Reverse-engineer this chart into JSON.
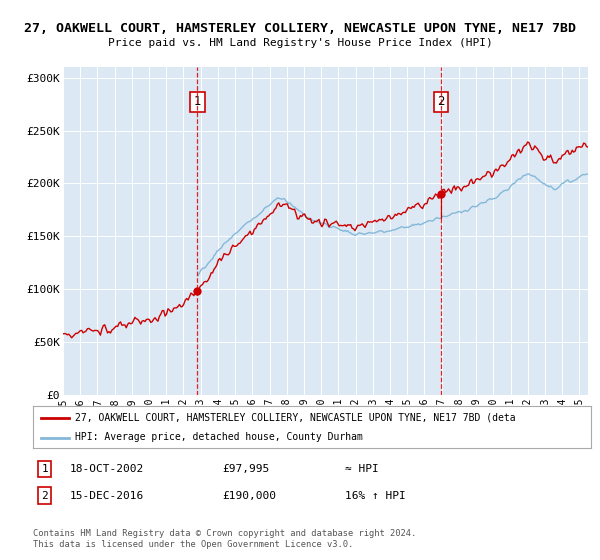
{
  "title": "27, OAKWELL COURT, HAMSTERLEY COLLIERY, NEWCASTLE UPON TYNE, NE17 7BD",
  "subtitle": "Price paid vs. HM Land Registry's House Price Index (HPI)",
  "background_color": "#dce9f5",
  "plot_bg_color": "#dce9f5",
  "hpi_color": "#85b8d8",
  "price_color": "#cc0000",
  "sale1_date": 2002.8,
  "sale1_price": 97995,
  "sale2_date": 2016.96,
  "sale2_price": 190000,
  "xmin": 1995,
  "xmax": 2025.5,
  "ymin": 0,
  "ymax": 310000,
  "yticks": [
    0,
    50000,
    100000,
    150000,
    200000,
    250000,
    300000
  ],
  "ytick_labels": [
    "£0",
    "£50K",
    "£100K",
    "£150K",
    "£200K",
    "£250K",
    "£300K"
  ],
  "xtick_years": [
    1995,
    1996,
    1997,
    1998,
    1999,
    2000,
    2001,
    2002,
    2003,
    2004,
    2005,
    2006,
    2007,
    2008,
    2009,
    2010,
    2011,
    2012,
    2013,
    2014,
    2015,
    2016,
    2017,
    2018,
    2019,
    2020,
    2021,
    2022,
    2023,
    2024,
    2025
  ],
  "legend_label_price": "27, OAKWELL COURT, HAMSTERLEY COLLIERY, NEWCASTLE UPON TYNE, NE17 7BD (deta",
  "legend_label_hpi": "HPI: Average price, detached house, County Durham",
  "sale1_label": "1",
  "sale2_label": "2",
  "table_row1": [
    "1",
    "18-OCT-2002",
    "£97,995",
    "≈ HPI"
  ],
  "table_row2": [
    "2",
    "15-DEC-2016",
    "£190,000",
    "16% ↑ HPI"
  ],
  "footer": "Contains HM Land Registry data © Crown copyright and database right 2024.\nThis data is licensed under the Open Government Licence v3.0."
}
